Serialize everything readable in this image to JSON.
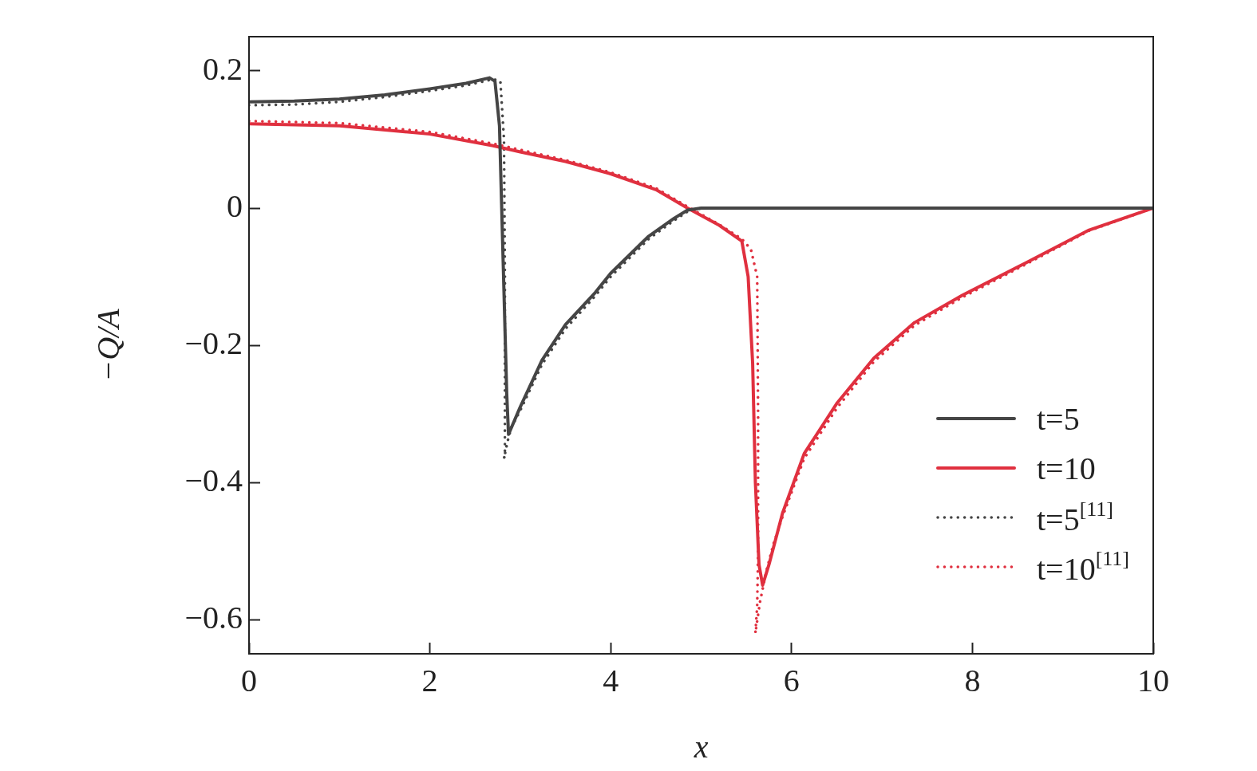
{
  "chart_data": {
    "type": "line",
    "xlabel": "x",
    "ylabel": "−Q/A",
    "xlim": [
      0,
      10
    ],
    "ylim": [
      -0.65,
      0.25
    ],
    "xticks": [
      0,
      2,
      4,
      6,
      8,
      10
    ],
    "yticks": [
      {
        "value": -0.6,
        "label": "−0.6"
      },
      {
        "value": -0.4,
        "label": "−0.4"
      },
      {
        "value": -0.2,
        "label": "−0.2"
      },
      0,
      0.2
    ],
    "grid": false,
    "legend": "bottom right",
    "marker": "none",
    "series": [
      {
        "name": "t=5",
        "color": "#454545",
        "line_style": "solid",
        "x": [
          0,
          0.5,
          1,
          1.5,
          2,
          2.4,
          2.66,
          2.72,
          2.77,
          2.81,
          2.85,
          2.87,
          3.0,
          3.24,
          3.5,
          3.83,
          4.0,
          4.42,
          4.7,
          4.85,
          5.0,
          6,
          7,
          8,
          9,
          10
        ],
        "values": [
          0.155,
          0.156,
          0.159,
          0.165,
          0.174,
          0.182,
          0.19,
          0.185,
          0.12,
          -0.075,
          -0.27,
          -0.33,
          -0.29,
          -0.222,
          -0.17,
          -0.123,
          -0.095,
          -0.041,
          -0.015,
          -0.003,
          0,
          0,
          0,
          0,
          0,
          0
        ]
      },
      {
        "name": "t=10",
        "color": "#e0303f",
        "line_style": "solid",
        "x": [
          0,
          1,
          2,
          2.7,
          3,
          3.5,
          4,
          4.5,
          4.85,
          5.2,
          5.45,
          5.52,
          5.57,
          5.6,
          5.64,
          5.68,
          5.75,
          5.9,
          6.14,
          6.5,
          6.91,
          7.36,
          7.89,
          8.59,
          9.29,
          10
        ],
        "values": [
          0.123,
          0.12,
          0.108,
          0.091,
          0.082,
          0.068,
          0.05,
          0.027,
          0,
          -0.025,
          -0.048,
          -0.1,
          -0.227,
          -0.4,
          -0.52,
          -0.55,
          -0.52,
          -0.445,
          -0.358,
          -0.285,
          -0.219,
          -0.167,
          -0.127,
          -0.08,
          -0.032,
          0
        ]
      },
      {
        "name": "t=5$^{[11]}$",
        "color": "#454545",
        "line_style": "dotted",
        "x": [
          0,
          0.5,
          1,
          1.5,
          2,
          2.4,
          2.7,
          2.78,
          2.82,
          2.83,
          2.83,
          2.83,
          2.82,
          2.86,
          2.9,
          3.0,
          3.24,
          3.5,
          3.83,
          4.0,
          4.42,
          4.7,
          4.85,
          5.0
        ],
        "values": [
          0.15,
          0.151,
          0.155,
          0.162,
          0.171,
          0.179,
          0.188,
          0.185,
          0.1,
          -0.1,
          -0.3,
          -0.36,
          -0.365,
          -0.34,
          -0.32,
          -0.295,
          -0.228,
          -0.176,
          -0.128,
          -0.1,
          -0.045,
          -0.018,
          -0.005,
          0
        ]
      },
      {
        "name": "t=10$^{[11]}$",
        "color": "#e0303f",
        "line_style": "dotted",
        "x": [
          0,
          1,
          2,
          2.7,
          3,
          3.5,
          4,
          4.5,
          4.85,
          5.2,
          5.45,
          5.55,
          5.62,
          5.63,
          5.63,
          5.62,
          5.6,
          5.65,
          5.72,
          5.8,
          5.9,
          6.14,
          6.5,
          6.91,
          7.36,
          7.89,
          8.59,
          9.29,
          10
        ],
        "values": [
          0.127,
          0.124,
          0.111,
          0.094,
          0.085,
          0.07,
          0.052,
          0.029,
          0.002,
          -0.024,
          -0.045,
          -0.06,
          -0.1,
          -0.3,
          -0.5,
          -0.58,
          -0.62,
          -0.575,
          -0.53,
          -0.49,
          -0.45,
          -0.365,
          -0.292,
          -0.224,
          -0.171,
          -0.13,
          -0.082,
          -0.033,
          0
        ]
      }
    ]
  }
}
